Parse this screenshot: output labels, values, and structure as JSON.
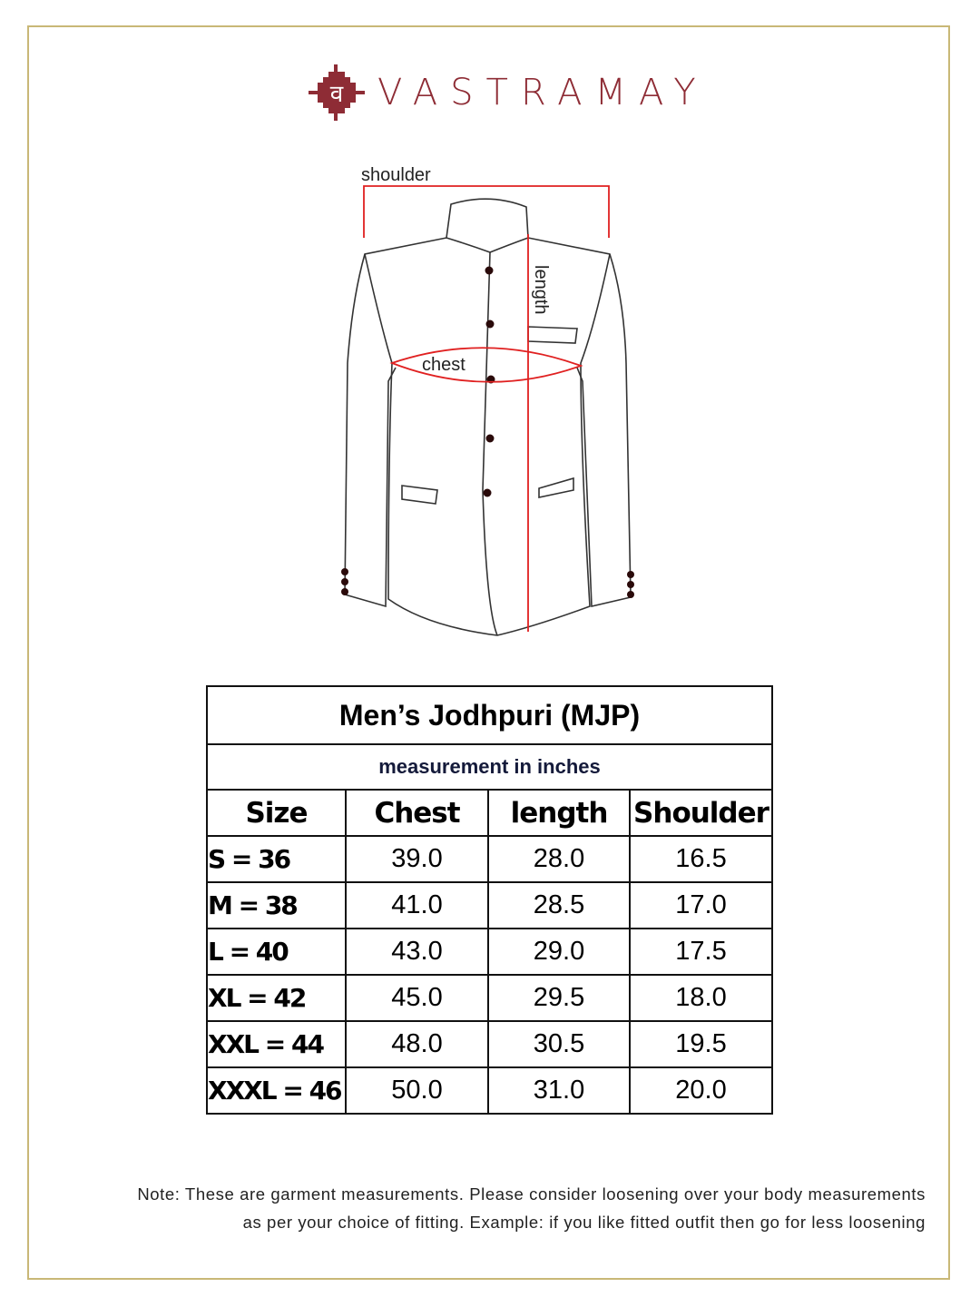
{
  "brand": {
    "name": "VASTRAMAY",
    "logo_glyph": "व",
    "color": "#8e2c35"
  },
  "diagram": {
    "labels": {
      "shoulder": "shoulder",
      "length": "length",
      "chest": "chest"
    }
  },
  "table": {
    "title": "Men’s Jodhpuri (MJP)",
    "subtitle": "measurement in inches",
    "headers": [
      "Size",
      "Chest",
      "length",
      "Shoulder"
    ],
    "rows": [
      [
        "S = 36",
        "39.0",
        "28.0",
        "16.5"
      ],
      [
        "M = 38",
        "41.0",
        "28.5",
        "17.0"
      ],
      [
        "L = 40",
        "43.0",
        "29.0",
        "17.5"
      ],
      [
        "XL = 42",
        "45.0",
        "29.5",
        "18.0"
      ],
      [
        "XXL = 44",
        "48.0",
        "30.5",
        "19.5"
      ],
      [
        "XXXL = 46",
        "50.0",
        "31.0",
        "20.0"
      ]
    ]
  },
  "note": {
    "line1": "Note: These are garment measurements. Please consider loosening over your body measurements",
    "line2": "as per your choice of fitting. Example: if you like fitted outfit then go for less loosening"
  }
}
